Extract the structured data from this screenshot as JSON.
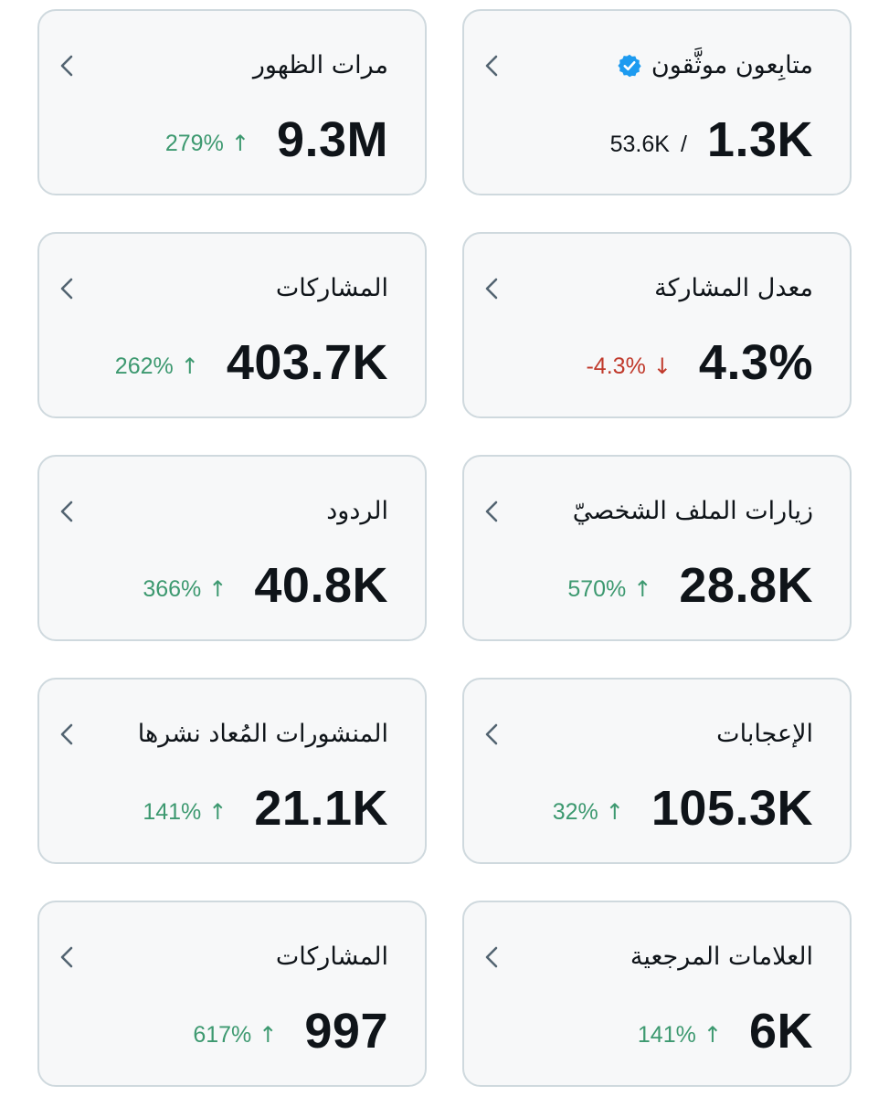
{
  "accent_up_color": "#3d9970",
  "accent_down_color": "#c0392b",
  "verified_badge_color": "#1d9bf0",
  "cards": [
    {
      "label": "مرات الظهور",
      "value": "9.3M",
      "change": "279%",
      "direction": "up",
      "icon": "chevron-left-icon"
    },
    {
      "label": "متابِعون موثَّقون",
      "value": "1.3K",
      "secondary": "53.6K",
      "separator": "/",
      "verified": true,
      "icon": "chevron-left-icon"
    },
    {
      "label": "المشاركات",
      "value": "403.7K",
      "change": "262%",
      "direction": "up",
      "icon": "chevron-left-icon"
    },
    {
      "label": "معدل المشاركة",
      "value": "4.3%",
      "change": "-4.3%",
      "direction": "down",
      "icon": "chevron-left-icon"
    },
    {
      "label": "الردود",
      "value": "40.8K",
      "change": "366%",
      "direction": "up",
      "icon": "chevron-left-icon"
    },
    {
      "label": "زيارات الملف الشخصيّ",
      "value": "28.8K",
      "change": "570%",
      "direction": "up",
      "icon": "chevron-left-icon"
    },
    {
      "label": "المنشورات المُعاد نشرها",
      "value": "21.1K",
      "change": "141%",
      "direction": "up",
      "icon": "chevron-left-icon"
    },
    {
      "label": "الإعجابات",
      "value": "105.3K",
      "change": "32%",
      "direction": "up",
      "icon": "chevron-left-icon"
    },
    {
      "label": "المشاركات",
      "value": "997",
      "change": "617%",
      "direction": "up",
      "icon": "chevron-left-icon"
    },
    {
      "label": "العلامات المرجعية",
      "value": "6K",
      "change": "141%",
      "direction": "up",
      "icon": "chevron-left-icon"
    }
  ]
}
